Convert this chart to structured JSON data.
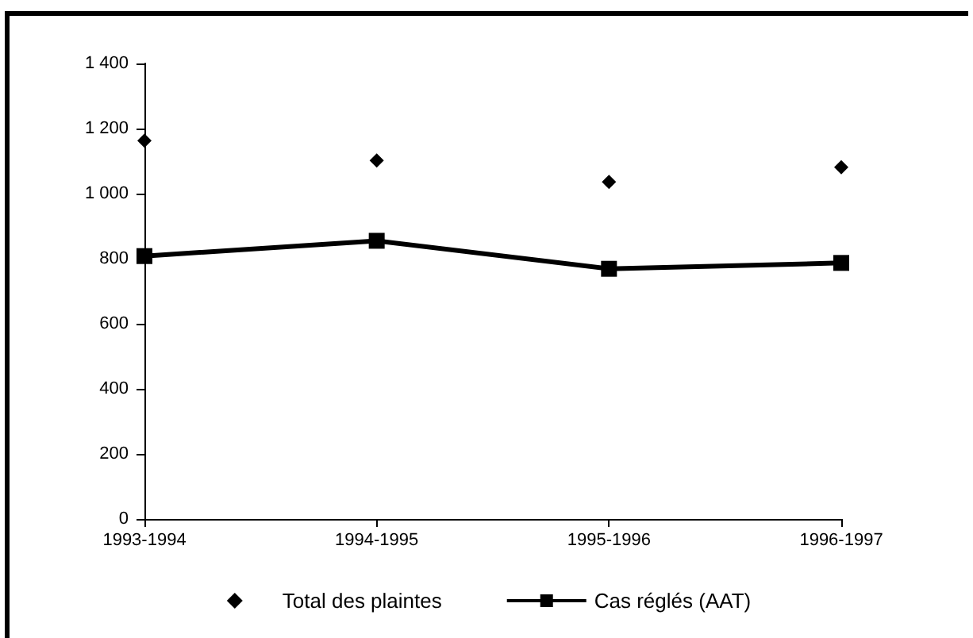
{
  "chart_data": {
    "type": "line",
    "categories": [
      "1993-1994",
      "1994-1995",
      "1995-1996",
      "1996-1997"
    ],
    "series": [
      {
        "name": "Total des plaintes",
        "type": "scatter",
        "marker": "diamond",
        "color": "#000000",
        "values": [
          1163,
          1102,
          1036,
          1081
        ]
      },
      {
        "name": "Cas réglés (AAT)",
        "type": "line",
        "marker": "square",
        "line_style": "solid",
        "color": "#000000",
        "values": [
          808,
          855,
          769,
          787
        ]
      }
    ],
    "ylim": [
      0,
      1400
    ],
    "yticks": [
      0,
      200,
      400,
      600,
      800,
      {
        "value": 1000,
        "label": "1 000"
      },
      {
        "value": 1200,
        "label": "1 200"
      },
      {
        "value": 1400,
        "label": "1 400"
      }
    ],
    "grid": false,
    "legend": "bottom"
  }
}
